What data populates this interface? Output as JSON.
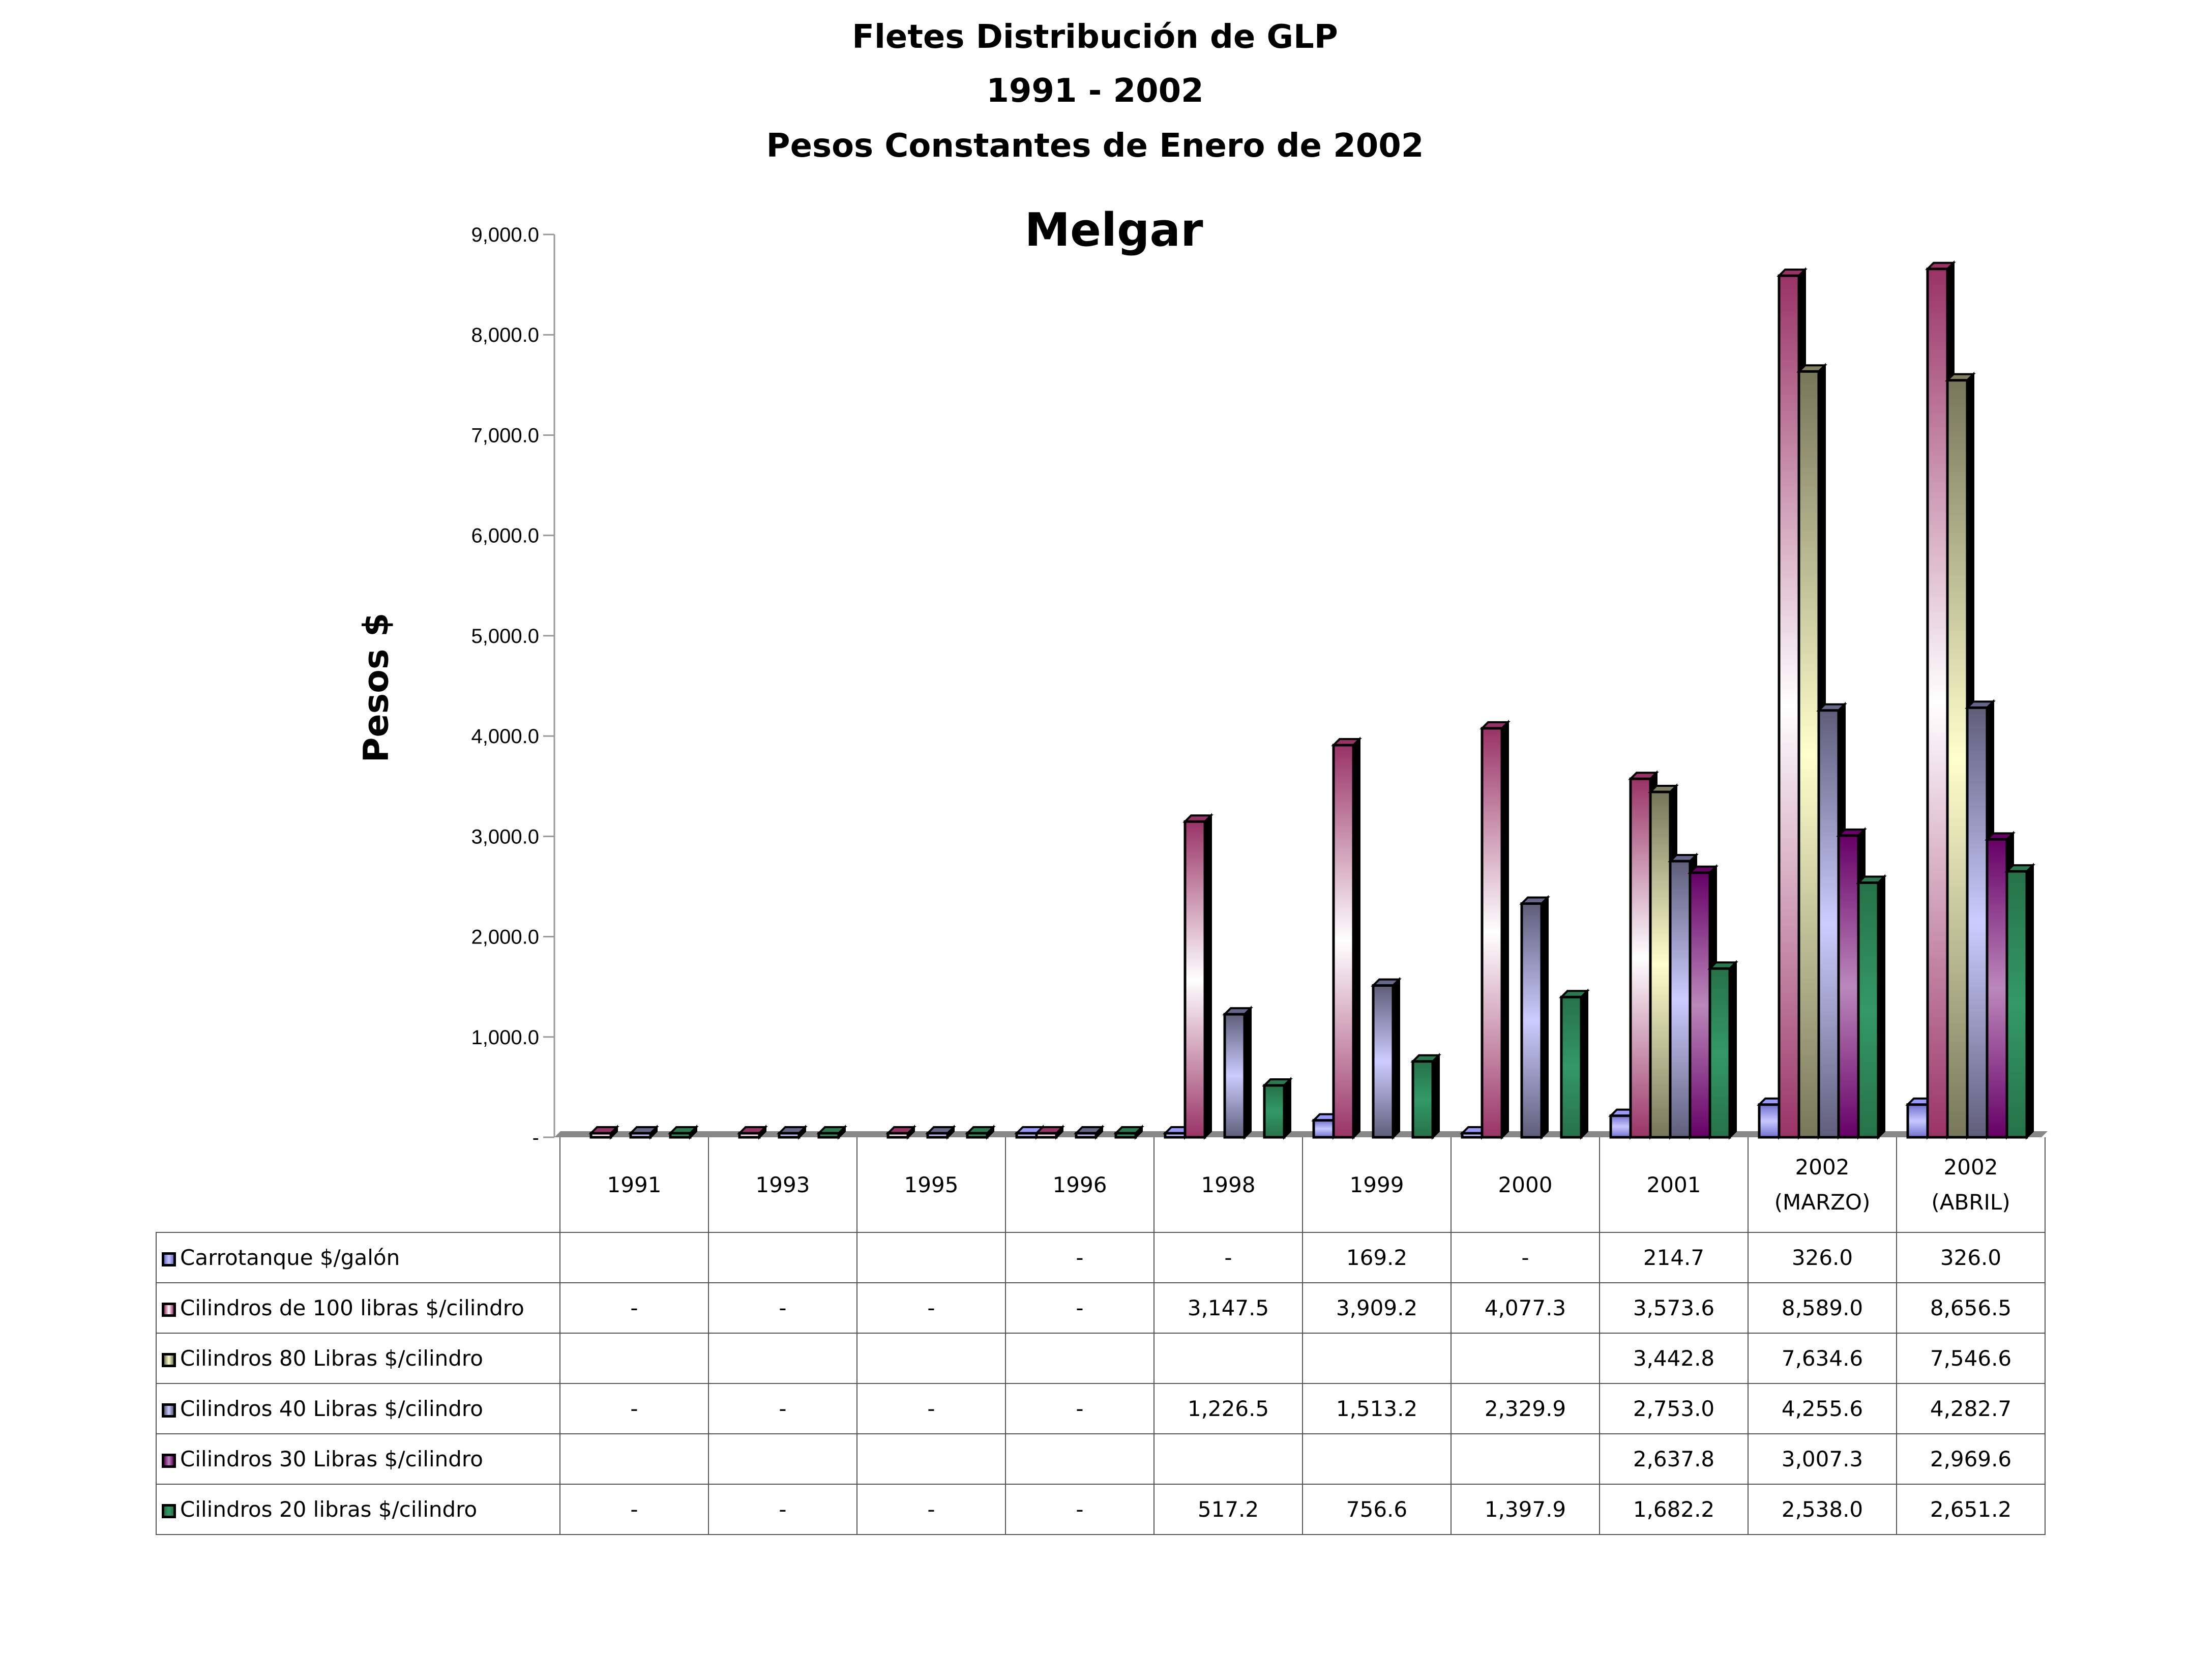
{
  "chart_data": {
    "type": "bar",
    "title_lines": [
      "Fletes  Distribución de GLP",
      "1991 - 2002",
      "Pesos Constantes de Enero de 2002"
    ],
    "subtitle": "Melgar",
    "ylabel": "Pesos $",
    "ylim": [
      0,
      9000
    ],
    "yticks": [
      0,
      1000,
      2000,
      3000,
      4000,
      5000,
      6000,
      7000,
      8000,
      9000
    ],
    "ytick_labels": [
      "-",
      "1,000.0",
      "2,000.0",
      "3,000.0",
      "4,000.0",
      "5,000.0",
      "6,000.0",
      "7,000.0",
      "8,000.0",
      "9,000.0"
    ],
    "categories": [
      {
        "line1": "1991",
        "line2": ""
      },
      {
        "line1": "1993",
        "line2": ""
      },
      {
        "line1": "1995",
        "line2": ""
      },
      {
        "line1": "1996",
        "line2": ""
      },
      {
        "line1": "1998",
        "line2": ""
      },
      {
        "line1": "1999",
        "line2": ""
      },
      {
        "line1": "2000",
        "line2": ""
      },
      {
        "line1": "2001",
        "line2": ""
      },
      {
        "line1": "2002",
        "line2": "(MARZO)"
      },
      {
        "line1": "2002",
        "line2": "(ABRIL)"
      }
    ],
    "series": [
      {
        "name": "Carrotanque $/galón",
        "color": "#9999ff",
        "light": "#c8c8ff",
        "dark": "#7070d0",
        "values": [
          "",
          "",
          "",
          "-",
          "-",
          "169.2",
          "-",
          "214.7",
          "326.0",
          "326.0"
        ]
      },
      {
        "name": "Cilindros de 100 libras $/cilindro",
        "color": "#993366",
        "light": "#ffffff",
        "dark": "#993366",
        "values": [
          "-",
          "-",
          "-",
          "-",
          "3,147.5",
          "3,909.2",
          "4,077.3",
          "3,573.6",
          "8,589.0",
          "8,656.5"
        ]
      },
      {
        "name": "Cilindros 80 Libras $/cilindro",
        "color": "#808060",
        "light": "#ffffcc",
        "dark": "#76765a",
        "values": [
          "",
          "",
          "",
          "",
          "",
          "",
          "",
          "3,442.8",
          "7,634.6",
          "7,546.6"
        ]
      },
      {
        "name": "Cilindros 40 Libras $/cilindro",
        "color": "#666688",
        "light": "#ccccff",
        "dark": "#5e5e7a",
        "values": [
          "-",
          "-",
          "-",
          "-",
          "1,226.5",
          "1,513.2",
          "2,329.9",
          "2,753.0",
          "4,255.6",
          "4,282.7"
        ]
      },
      {
        "name": "Cilindros 30 Libras $/cilindro",
        "color": "#660066",
        "light": "#bb88bb",
        "dark": "#660066",
        "values": [
          "",
          "",
          "",
          "",
          "",
          "",
          "",
          "2,637.8",
          "3,007.3",
          "2,969.6"
        ]
      },
      {
        "name": "Cilindros 20 libras $/cilindro",
        "color": "#2a7a50",
        "light": "#339966",
        "dark": "#267248",
        "values": [
          "-",
          "-",
          "-",
          "-",
          "517.2",
          "756.6",
          "1,397.9",
          "1,682.2",
          "2,538.0",
          "2,651.2"
        ]
      }
    ]
  }
}
